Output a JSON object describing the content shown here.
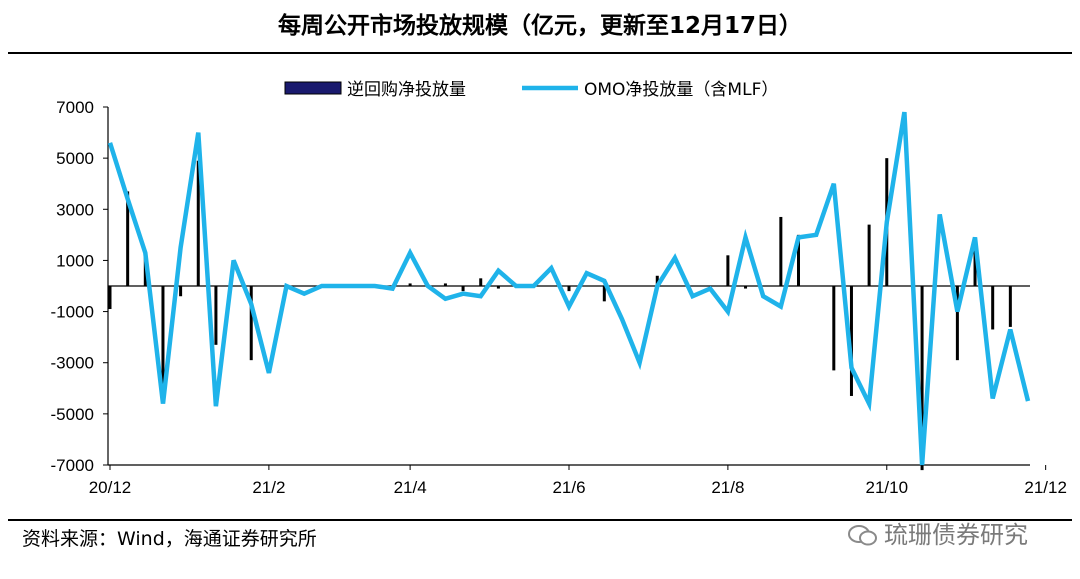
{
  "title": "每周公开市场投放规模（亿元，更新至12月17日）",
  "source": "资料来源：Wind，海通证券研究所",
  "watermark": "琉珊债券研究",
  "colors": {
    "bar": "#000000",
    "bar_legend": "#1a1a6e",
    "line": "#1fb3ea",
    "axis": "#000000"
  },
  "chart_data": {
    "type": "line",
    "title": "每周公开市场投放规模（亿元，更新至12月17日）",
    "xlabel": "",
    "ylabel": "",
    "ylim": [
      -7000,
      7000
    ],
    "yticks": [
      7000,
      5000,
      3000,
      1000,
      -1000,
      -3000,
      -5000,
      -7000
    ],
    "ytick_labels": [
      "7000",
      "5000",
      "3000",
      "1000",
      "-1000",
      "-3000",
      "-5000",
      "-7000"
    ],
    "xtick_labels": [
      "20/12",
      "21/2",
      "21/4",
      "21/6",
      "21/8",
      "21/10",
      "21/12"
    ],
    "xtick_index": [
      0,
      9,
      17,
      26,
      35,
      44,
      53
    ],
    "legend_position": "top",
    "series": [
      {
        "name": "逆回购净投放量",
        "kind": "bar",
        "values": [
          -900,
          3700,
          1200,
          -3900,
          -400,
          4900,
          -2300,
          0,
          -2900,
          0,
          0,
          0,
          0,
          0,
          0,
          0,
          0,
          100,
          0,
          100,
          -200,
          300,
          -100,
          0,
          0,
          0,
          -200,
          0,
          -600,
          0,
          0,
          400,
          0,
          0,
          0,
          1200,
          -100,
          0,
          2700,
          2000,
          0,
          -3300,
          -4300,
          2400,
          5000,
          0,
          -7200,
          0,
          -2900,
          1400,
          -1700,
          -1600,
          0
        ]
      },
      {
        "name": "OMO净投放量（含MLF）",
        "kind": "line",
        "values": [
          5600,
          3400,
          1300,
          -4600,
          1500,
          6000,
          -4700,
          1000,
          -700,
          -3400,
          0,
          -300,
          0,
          0,
          0,
          0,
          -100,
          1300,
          0,
          -500,
          -300,
          -400,
          600,
          0,
          0,
          700,
          -800,
          500,
          200,
          -1300,
          -3000,
          0,
          1100,
          -400,
          -100,
          -1000,
          1900,
          -400,
          -800,
          1900,
          2000,
          4000,
          -3200,
          -4600,
          2500,
          6800,
          -7000,
          2800,
          -1000,
          1900,
          -4400,
          -1700,
          -4500
        ]
      }
    ]
  }
}
